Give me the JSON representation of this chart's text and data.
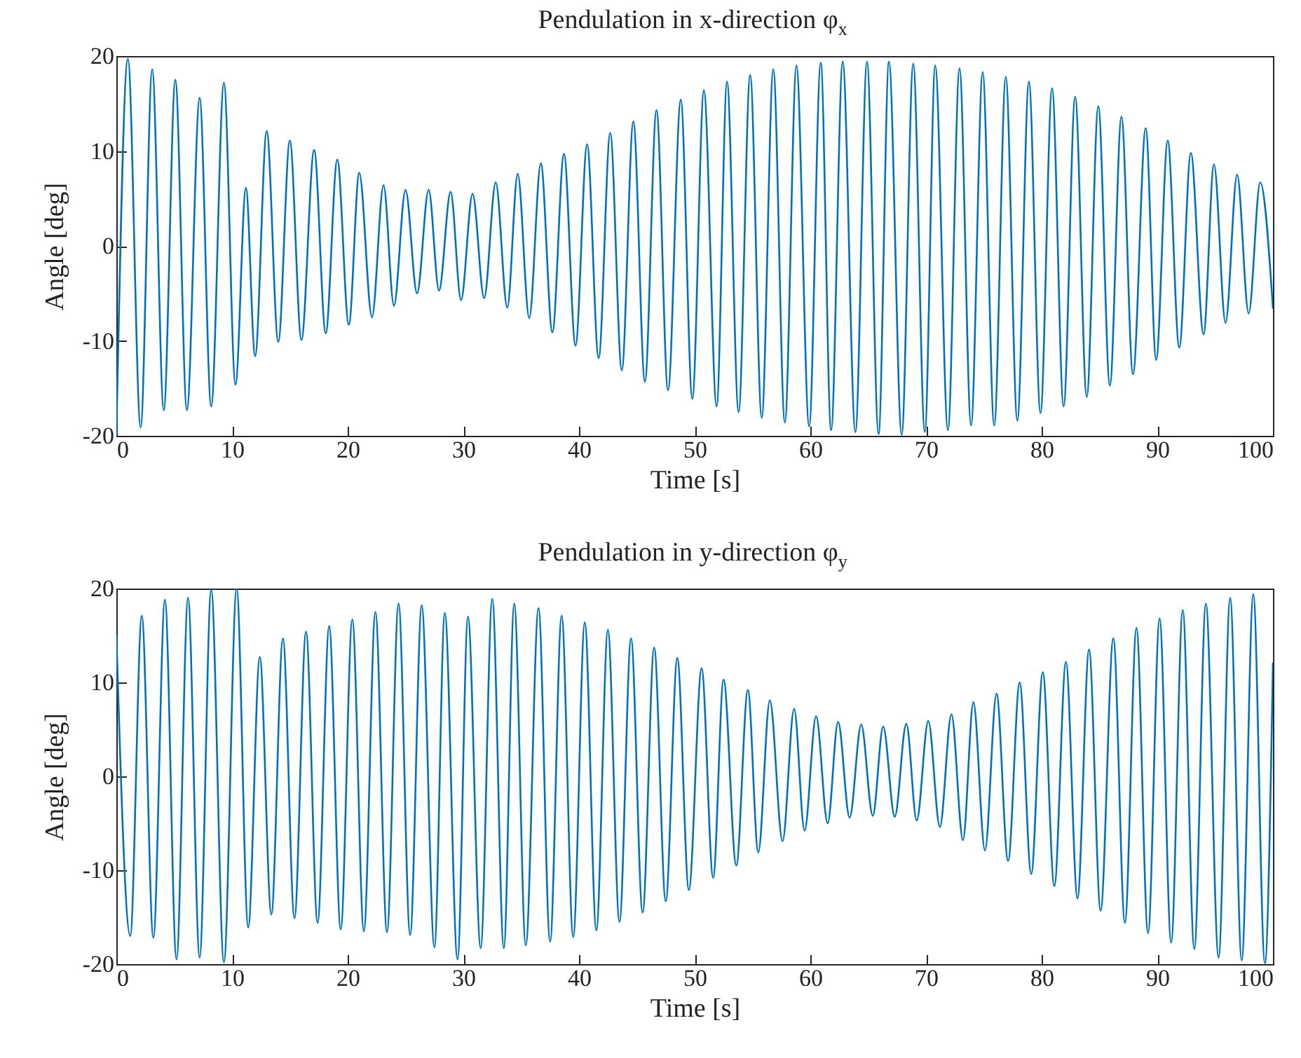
{
  "chart_data": [
    {
      "type": "line",
      "title": "Pendulation in x-direction φ$_{x}$",
      "xlabel": "Time [s]",
      "ylabel": "Angle [deg]",
      "xlim": [
        0,
        100
      ],
      "ylim": [
        -20,
        20
      ],
      "xticks": [
        0,
        10,
        20,
        30,
        40,
        50,
        60,
        70,
        80,
        90,
        100
      ],
      "yticks": [
        -20,
        -10,
        0,
        10,
        20
      ],
      "grid": false,
      "series": [
        {
          "color": "#0072bd",
          "x": [
            0,
            1.0,
            2.1,
            3.1,
            4.1,
            5.1,
            6.1,
            7.2,
            8.2,
            9.3,
            10.3,
            11.2,
            12.0,
            13.0,
            14.0,
            15.0,
            16.0,
            17.1,
            18.1,
            19.1,
            20.1,
            21.0,
            22.1,
            23.1,
            24.0,
            25.0,
            26.0,
            27.0,
            27.9,
            28.9,
            29.8,
            30.8,
            31.8,
            32.8,
            33.8,
            34.7,
            35.7,
            36.7,
            37.7,
            38.7,
            39.7,
            40.7,
            41.7,
            42.7,
            43.7,
            44.7,
            45.7,
            46.7,
            47.7,
            48.8,
            49.8,
            50.8,
            51.9,
            52.8,
            53.8,
            54.8,
            55.8,
            56.8,
            57.8,
            58.8,
            59.9,
            60.9,
            61.8,
            62.8,
            63.9,
            64.9,
            65.9,
            66.8,
            67.9,
            68.9,
            69.9,
            70.8,
            71.9,
            72.9,
            73.9,
            74.9,
            75.9,
            76.9,
            77.9,
            78.9,
            79.9,
            80.9,
            81.9,
            82.9,
            83.9,
            84.9,
            85.9,
            86.9,
            87.9,
            89.0,
            89.9,
            90.9,
            91.9,
            92.9,
            94.0,
            94.9,
            95.9,
            96.9,
            97.9,
            98.9,
            100
          ],
          "values": [
            -20,
            19.7,
            -19.1,
            18.6,
            -17.3,
            17.5,
            -17.3,
            15.6,
            -16.9,
            17.2,
            -14.6,
            6.1,
            -11.6,
            12.1,
            -10.1,
            11.1,
            -9.9,
            10.1,
            -9.2,
            9.1,
            -8.3,
            7.7,
            -7.5,
            6.4,
            -6.3,
            5.9,
            -5.0,
            5.9,
            -4.7,
            5.7,
            -5.7,
            5.5,
            -5.5,
            6.7,
            -6.5,
            7.6,
            -7.6,
            8.7,
            -9.1,
            9.7,
            -10.5,
            10.7,
            -11.8,
            11.9,
            -13.1,
            13.1,
            -14.3,
            14.3,
            -15.2,
            15.4,
            -16.1,
            16.4,
            -16.9,
            17.3,
            -17.5,
            18.0,
            -18.1,
            18.6,
            -18.6,
            19.0,
            -19.0,
            19.3,
            -19.4,
            19.4,
            -19.6,
            19.4,
            -19.8,
            19.4,
            -19.9,
            19.2,
            -19.6,
            19.0,
            -19.4,
            18.7,
            -18.9,
            18.3,
            -18.9,
            17.8,
            -18.4,
            17.3,
            -17.6,
            16.6,
            -16.9,
            15.7,
            -15.9,
            14.7,
            -14.7,
            13.6,
            -13.5,
            12.4,
            -12.0,
            11.1,
            -10.7,
            9.8,
            -9.3,
            8.6,
            -8.1,
            7.5,
            -7.1,
            6.7,
            -6.6
          ]
        }
      ]
    },
    {
      "type": "line",
      "title": "Pendulation in y-direction φ$_{y}$",
      "xlabel": "Time [s]",
      "ylabel": "Angle [deg]",
      "xlim": [
        0,
        100
      ],
      "ylim": [
        -20,
        20
      ],
      "xticks": [
        0,
        10,
        20,
        30,
        40,
        50,
        60,
        70,
        80,
        90,
        100
      ],
      "yticks": [
        -20,
        -10,
        0,
        10,
        20
      ],
      "grid": false,
      "series": [
        {
          "color": "#0072bd",
          "x": [
            0,
            1.2,
            2.2,
            3.2,
            4.2,
            5.2,
            6.2,
            7.2,
            8.2,
            9.3,
            10.4,
            11.4,
            12.4,
            13.4,
            14.4,
            15.4,
            16.4,
            17.4,
            18.4,
            19.4,
            20.4,
            21.4,
            22.4,
            23.4,
            24.4,
            25.4,
            26.4,
            27.5,
            28.4,
            29.5,
            30.4,
            31.5,
            32.5,
            33.5,
            34.4,
            35.4,
            36.5,
            37.5,
            38.5,
            39.5,
            40.5,
            41.5,
            42.5,
            43.5,
            44.5,
            45.5,
            46.5,
            47.5,
            48.5,
            49.5,
            50.6,
            51.6,
            52.5,
            53.6,
            54.6,
            55.5,
            56.5,
            57.6,
            58.6,
            59.5,
            60.5,
            61.5,
            62.4,
            63.4,
            64.4,
            65.4,
            66.3,
            67.3,
            68.3,
            69.2,
            70.2,
            71.2,
            72.2,
            73.2,
            74.1,
            75.1,
            76.1,
            77.1,
            78.1,
            79.1,
            80.1,
            81.1,
            82.1,
            83.1,
            84.1,
            85.1,
            86.2,
            87.2,
            88.2,
            89.2,
            90.2,
            91.2,
            92.2,
            93.2,
            94.2,
            95.3,
            96.3,
            97.3,
            98.3,
            99.3,
            100
          ],
          "values": [
            15.1,
            -17.0,
            17.1,
            -17.2,
            18.8,
            -19.5,
            19.0,
            -19.3,
            19.9,
            -19.8,
            20,
            -16.1,
            12.7,
            -14.7,
            14.7,
            -15.1,
            15.4,
            -15.6,
            16.0,
            -16.3,
            16.7,
            -16.5,
            17.5,
            -16.6,
            18.4,
            -16.9,
            18.2,
            -18.2,
            17.4,
            -19.5,
            17.0,
            -18.3,
            18.9,
            -18.3,
            18.4,
            -18.0,
            17.9,
            -17.6,
            17.1,
            -17.1,
            16.4,
            -16.4,
            15.6,
            -15.5,
            14.7,
            -14.5,
            13.7,
            -13.3,
            12.6,
            -12.1,
            11.5,
            -10.8,
            10.3,
            -9.5,
            9.2,
            -8.1,
            8.1,
            -6.9,
            7.2,
            -5.8,
            6.4,
            -5.0,
            5.8,
            -4.4,
            5.5,
            -4.2,
            5.3,
            -4.3,
            5.6,
            -4.7,
            5.9,
            -5.4,
            6.6,
            -6.8,
            7.9,
            -7.9,
            8.8,
            -9.0,
            10.0,
            -10.4,
            11.1,
            -11.7,
            12.2,
            -13.0,
            13.5,
            -14.3,
            14.7,
            -15.6,
            15.8,
            -16.7,
            16.8,
            -17.7,
            17.7,
            -18.4,
            18.4,
            -19.3,
            19.0,
            -19.6,
            19.4,
            -19.9,
            12.1
          ]
        }
      ]
    }
  ]
}
